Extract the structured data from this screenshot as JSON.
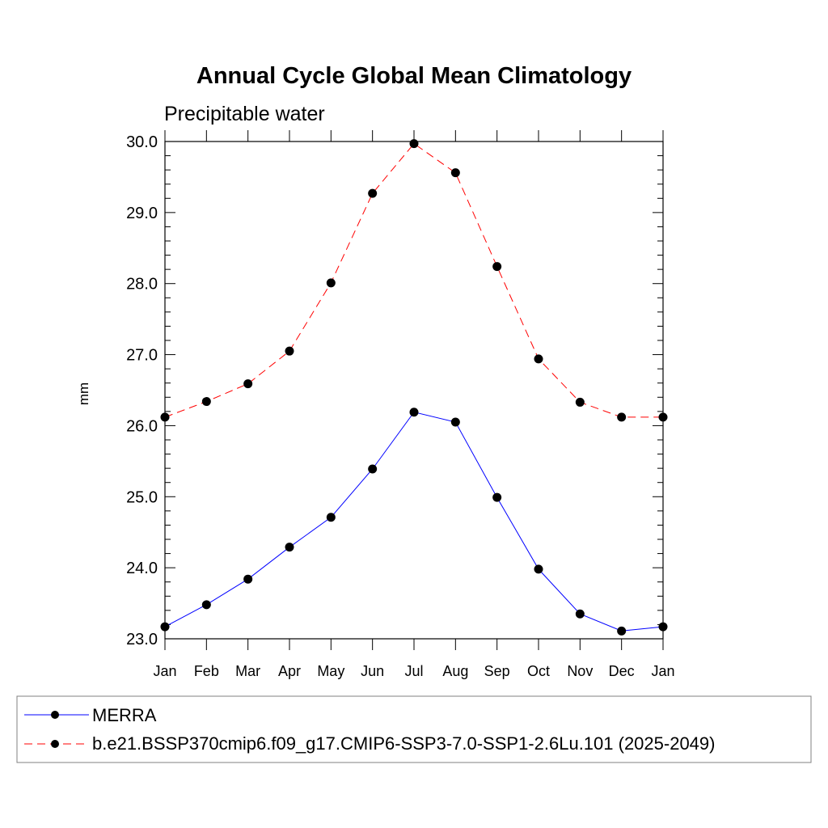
{
  "chart_data": {
    "type": "line",
    "title": "Annual Cycle Global Mean Climatology",
    "subtitle": "Precipitable water",
    "xlabel": "",
    "ylabel": "mm",
    "categories": [
      "Jan",
      "Feb",
      "Mar",
      "Apr",
      "May",
      "Jun",
      "Jul",
      "Aug",
      "Sep",
      "Oct",
      "Nov",
      "Dec",
      "Jan"
    ],
    "ylim": [
      23.0,
      30.0
    ],
    "y_major_ticks": [
      "23.0",
      "24.0",
      "25.0",
      "26.0",
      "27.0",
      "28.0",
      "29.0",
      "30.0"
    ],
    "y_minor_step": 0.2,
    "grid": false,
    "legend_position": "bottom",
    "series": [
      {
        "name": "MERRA",
        "color": "#0000ff",
        "line_style": "solid",
        "marker": "filled-circle",
        "values": [
          23.17,
          23.48,
          23.84,
          24.29,
          24.71,
          25.39,
          26.19,
          26.05,
          24.99,
          23.98,
          23.35,
          23.11,
          23.17
        ]
      },
      {
        "name": "b.e21.BSSP370cmip6.f09_g17.CMIP6-SSP3-7.0-SSP1-2.6Lu.101 (2025-2049)",
        "color": "#ff0000",
        "line_style": "dashed",
        "marker": "filled-circle",
        "values": [
          26.12,
          26.34,
          26.59,
          27.05,
          28.01,
          29.27,
          29.97,
          29.56,
          28.24,
          26.94,
          26.33,
          26.12,
          26.12
        ]
      }
    ]
  }
}
